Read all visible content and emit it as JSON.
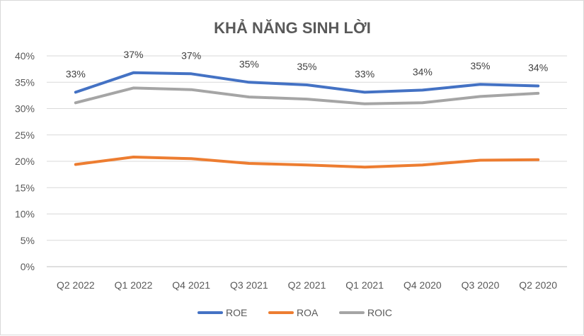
{
  "chart_data": {
    "type": "line",
    "title": "KHẢ NĂNG SINH LỜI",
    "categories": [
      "Q2 2022",
      "Q1 2022",
      "Q4 2021",
      "Q3 2021",
      "Q2 2021",
      "Q1 2021",
      "Q4 2020",
      "Q3 2020",
      "Q2 2020"
    ],
    "ylim": [
      0,
      40
    ],
    "yticks": [
      0,
      5,
      10,
      15,
      20,
      25,
      30,
      35,
      40
    ],
    "ytick_labels": [
      "0%",
      "5%",
      "10%",
      "15%",
      "20%",
      "25%",
      "30%",
      "35%",
      "40%"
    ],
    "grid": true,
    "legend_position": "bottom",
    "series": [
      {
        "name": "ROE",
        "color": "#4472c4",
        "values": [
          33.1,
          36.8,
          36.6,
          35.0,
          34.5,
          33.1,
          33.5,
          34.6,
          34.3
        ],
        "data_labels": [
          "33%",
          "37%",
          "37%",
          "35%",
          "35%",
          "33%",
          "34%",
          "35%",
          "34%"
        ]
      },
      {
        "name": "ROA",
        "color": "#ed7d31",
        "values": [
          19.4,
          20.8,
          20.5,
          19.6,
          19.3,
          18.9,
          19.3,
          20.2,
          20.3
        ]
      },
      {
        "name": "ROIC",
        "color": "#a5a5a5",
        "values": [
          31.1,
          33.9,
          33.6,
          32.2,
          31.8,
          30.9,
          31.1,
          32.3,
          32.9
        ]
      }
    ]
  }
}
